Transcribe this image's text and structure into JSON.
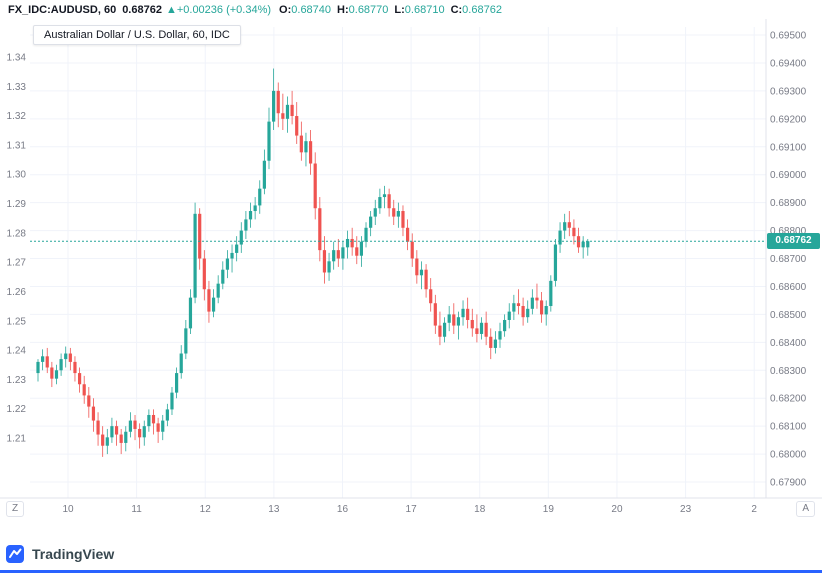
{
  "header": {
    "symbol": "FX_IDC:AUDUSD, 60",
    "last_price": "0.68762",
    "arrow": "▲",
    "change": "+0.00236 (+0.34%)",
    "ohlc": {
      "o_label": "O:",
      "o": "0.68740",
      "h_label": "H:",
      "h": "0.68770",
      "l_label": "L:",
      "l": "0.68710",
      "c_label": "C:",
      "c": "0.68762"
    }
  },
  "legend": {
    "title": "Australian Dollar / U.S. Dollar, 60, IDC"
  },
  "buttons": {
    "z": "Z",
    "a": "A"
  },
  "footer": {
    "brand": "TradingView"
  },
  "price_line": {
    "label": "0.68762",
    "value": 0.68762
  },
  "chart_data": {
    "type": "candlestick",
    "title": "Australian Dollar / U.S. Dollar, 60, IDC",
    "symbol": "FX_IDC:AUDUSD",
    "interval": "60",
    "exchange": "IDC",
    "current_price": 0.68762,
    "x_ticks": [
      "10",
      "11",
      "12",
      "13",
      "16",
      "17",
      "18",
      "19",
      "20",
      "23",
      "2"
    ],
    "y_axis_right": {
      "max": 0.695,
      "min": 0.679,
      "tick": 0.001,
      "labels": [
        "0.69500",
        "0.69400",
        "0.69300",
        "0.69200",
        "0.69100",
        "0.69000",
        "0.68900",
        "0.68800",
        "0.68700",
        "0.68600",
        "0.68500",
        "0.68400",
        "0.68300",
        "0.68200",
        "0.68100",
        "0.68000",
        "0.67900"
      ]
    },
    "y_axis_left": {
      "labels": [
        "1.34",
        "1.33",
        "1.32",
        "1.31",
        "1.30",
        "1.29",
        "1.28",
        "1.27",
        "1.26",
        "1.25",
        "1.24",
        "1.23",
        "1.22",
        "1.21"
      ]
    },
    "colors": {
      "up": "#26a69a",
      "down": "#ef5350",
      "grid": "#f0f3fa",
      "axis_border": "#e0e3eb"
    },
    "candles": [
      [
        0.6829,
        0.6834,
        0.6826,
        0.6833
      ],
      [
        0.6833,
        0.68375,
        0.683,
        0.6835
      ],
      [
        0.6835,
        0.6838,
        0.6829,
        0.6831
      ],
      [
        0.6831,
        0.6833,
        0.6824,
        0.6827
      ],
      [
        0.6827,
        0.6832,
        0.6825,
        0.683
      ],
      [
        0.683,
        0.6836,
        0.6828,
        0.6834
      ],
      [
        0.6834,
        0.68385,
        0.6831,
        0.6836
      ],
      [
        0.6836,
        0.6838,
        0.683,
        0.6833
      ],
      [
        0.6833,
        0.6835,
        0.6826,
        0.6829
      ],
      [
        0.6829,
        0.6831,
        0.6822,
        0.6825
      ],
      [
        0.6825,
        0.6828,
        0.6818,
        0.6821
      ],
      [
        0.6821,
        0.6824,
        0.6813,
        0.6817
      ],
      [
        0.6817,
        0.682,
        0.6808,
        0.6812
      ],
      [
        0.6812,
        0.6815,
        0.6803,
        0.6807
      ],
      [
        0.6807,
        0.681,
        0.6799,
        0.6803
      ],
      [
        0.6803,
        0.6809,
        0.68,
        0.6806
      ],
      [
        0.6806,
        0.6813,
        0.6804,
        0.681
      ],
      [
        0.681,
        0.6812,
        0.6803,
        0.6807
      ],
      [
        0.6807,
        0.6809,
        0.68,
        0.6804
      ],
      [
        0.6804,
        0.681,
        0.6801,
        0.6808
      ],
      [
        0.6808,
        0.6815,
        0.6806,
        0.6812
      ],
      [
        0.6812,
        0.6814,
        0.6805,
        0.6809
      ],
      [
        0.6809,
        0.6811,
        0.6802,
        0.6806
      ],
      [
        0.6806,
        0.6812,
        0.6803,
        0.681
      ],
      [
        0.681,
        0.6816,
        0.6808,
        0.6814
      ],
      [
        0.6814,
        0.6816,
        0.6807,
        0.6811
      ],
      [
        0.6811,
        0.6813,
        0.6804,
        0.6808
      ],
      [
        0.6808,
        0.6814,
        0.6805,
        0.6812
      ],
      [
        0.6812,
        0.6818,
        0.681,
        0.6816
      ],
      [
        0.6816,
        0.6824,
        0.6814,
        0.6822
      ],
      [
        0.6822,
        0.6831,
        0.682,
        0.6829
      ],
      [
        0.6829,
        0.6839,
        0.6827,
        0.6836
      ],
      [
        0.6836,
        0.6848,
        0.6834,
        0.6845
      ],
      [
        0.6845,
        0.6859,
        0.6843,
        0.6856
      ],
      [
        0.6856,
        0.689,
        0.6854,
        0.6886
      ],
      [
        0.6886,
        0.6888,
        0.6866,
        0.687
      ],
      [
        0.687,
        0.6873,
        0.6855,
        0.6859
      ],
      [
        0.6859,
        0.6862,
        0.6847,
        0.6851
      ],
      [
        0.6851,
        0.6859,
        0.6849,
        0.6856
      ],
      [
        0.6856,
        0.6864,
        0.6854,
        0.6861
      ],
      [
        0.6861,
        0.6869,
        0.6859,
        0.6866
      ],
      [
        0.6866,
        0.6873,
        0.6863,
        0.687
      ],
      [
        0.687,
        0.6875,
        0.6865,
        0.6872
      ],
      [
        0.6872,
        0.6878,
        0.6869,
        0.6875
      ],
      [
        0.6875,
        0.6883,
        0.6872,
        0.688
      ],
      [
        0.688,
        0.6887,
        0.6877,
        0.6884
      ],
      [
        0.6884,
        0.689,
        0.6881,
        0.6887
      ],
      [
        0.6887,
        0.6892,
        0.6884,
        0.6889
      ],
      [
        0.6889,
        0.6898,
        0.6886,
        0.6895
      ],
      [
        0.6895,
        0.6909,
        0.6893,
        0.6905
      ],
      [
        0.6905,
        0.6924,
        0.6902,
        0.6919
      ],
      [
        0.6919,
        0.6938,
        0.6916,
        0.693
      ],
      [
        0.693,
        0.6933,
        0.6917,
        0.6922
      ],
      [
        0.6922,
        0.6929,
        0.6916,
        0.692
      ],
      [
        0.692,
        0.6928,
        0.6915,
        0.6925
      ],
      [
        0.6925,
        0.693,
        0.6918,
        0.6921
      ],
      [
        0.6921,
        0.6926,
        0.6911,
        0.6914
      ],
      [
        0.6914,
        0.6919,
        0.6905,
        0.6908
      ],
      [
        0.6908,
        0.6915,
        0.6903,
        0.6912
      ],
      [
        0.6912,
        0.6916,
        0.69,
        0.6904
      ],
      [
        0.6904,
        0.6908,
        0.6884,
        0.6888
      ],
      [
        0.6888,
        0.6892,
        0.6869,
        0.6873
      ],
      [
        0.6873,
        0.6878,
        0.6861,
        0.6865
      ],
      [
        0.6865,
        0.6872,
        0.6862,
        0.6869
      ],
      [
        0.6869,
        0.6876,
        0.6866,
        0.6873
      ],
      [
        0.6873,
        0.6877,
        0.6867,
        0.687
      ],
      [
        0.687,
        0.6876,
        0.6866,
        0.6874
      ],
      [
        0.6874,
        0.688,
        0.687,
        0.6877
      ],
      [
        0.6877,
        0.6881,
        0.6871,
        0.6874
      ],
      [
        0.6874,
        0.6878,
        0.6868,
        0.6871
      ],
      [
        0.6871,
        0.6878,
        0.6867,
        0.6876
      ],
      [
        0.6876,
        0.6883,
        0.6874,
        0.6881
      ],
      [
        0.6881,
        0.6887,
        0.6878,
        0.6885
      ],
      [
        0.6885,
        0.6891,
        0.6882,
        0.6888
      ],
      [
        0.6888,
        0.6895,
        0.6886,
        0.6892
      ],
      [
        0.6892,
        0.6896,
        0.6888,
        0.6893
      ],
      [
        0.6893,
        0.6895,
        0.6885,
        0.6888
      ],
      [
        0.6888,
        0.6891,
        0.6882,
        0.6885
      ],
      [
        0.6885,
        0.689,
        0.6881,
        0.6887
      ],
      [
        0.6887,
        0.6889,
        0.6878,
        0.6881
      ],
      [
        0.6881,
        0.6884,
        0.6873,
        0.6876
      ],
      [
        0.6876,
        0.6879,
        0.6867,
        0.687
      ],
      [
        0.687,
        0.6873,
        0.6861,
        0.6864
      ],
      [
        0.6864,
        0.6869,
        0.6859,
        0.6866
      ],
      [
        0.6866,
        0.6868,
        0.6856,
        0.6859
      ],
      [
        0.6859,
        0.6863,
        0.6851,
        0.6854
      ],
      [
        0.6854,
        0.6857,
        0.6843,
        0.6846
      ],
      [
        0.6846,
        0.6851,
        0.6839,
        0.6842
      ],
      [
        0.6842,
        0.6849,
        0.684,
        0.6847
      ],
      [
        0.6847,
        0.6853,
        0.6844,
        0.685
      ],
      [
        0.685,
        0.6854,
        0.6843,
        0.6846
      ],
      [
        0.6846,
        0.6851,
        0.6841,
        0.6849
      ],
      [
        0.6849,
        0.6855,
        0.6846,
        0.6852
      ],
      [
        0.6852,
        0.6856,
        0.6845,
        0.6848
      ],
      [
        0.6848,
        0.6852,
        0.6842,
        0.6845
      ],
      [
        0.6845,
        0.685,
        0.684,
        0.6843
      ],
      [
        0.6843,
        0.6849,
        0.6841,
        0.6847
      ],
      [
        0.6847,
        0.6851,
        0.6839,
        0.6842
      ],
      [
        0.6842,
        0.6845,
        0.6834,
        0.6838
      ],
      [
        0.6838,
        0.6844,
        0.6836,
        0.6841
      ],
      [
        0.6841,
        0.6847,
        0.6838,
        0.6844
      ],
      [
        0.6844,
        0.685,
        0.6842,
        0.6848
      ],
      [
        0.6848,
        0.6854,
        0.6845,
        0.6851
      ],
      [
        0.6851,
        0.6857,
        0.6848,
        0.6854
      ],
      [
        0.6854,
        0.6859,
        0.685,
        0.6853
      ],
      [
        0.6853,
        0.6856,
        0.6846,
        0.6849
      ],
      [
        0.6849,
        0.6855,
        0.6847,
        0.6852
      ],
      [
        0.6852,
        0.6859,
        0.685,
        0.6856
      ],
      [
        0.6856,
        0.6861,
        0.6852,
        0.6855
      ],
      [
        0.6855,
        0.6858,
        0.6847,
        0.685
      ],
      [
        0.685,
        0.6855,
        0.6846,
        0.6853
      ],
      [
        0.6853,
        0.6864,
        0.6851,
        0.6862
      ],
      [
        0.6862,
        0.6877,
        0.686,
        0.6875
      ],
      [
        0.6875,
        0.6883,
        0.6872,
        0.688
      ],
      [
        0.688,
        0.6886,
        0.6877,
        0.6883
      ],
      [
        0.6883,
        0.6887,
        0.6878,
        0.6881
      ],
      [
        0.6881,
        0.6884,
        0.6875,
        0.6878
      ],
      [
        0.6878,
        0.6881,
        0.6872,
        0.6874
      ],
      [
        0.6874,
        0.6878,
        0.687,
        0.6876
      ],
      [
        0.6874,
        0.6877,
        0.6871,
        0.68762
      ]
    ]
  }
}
